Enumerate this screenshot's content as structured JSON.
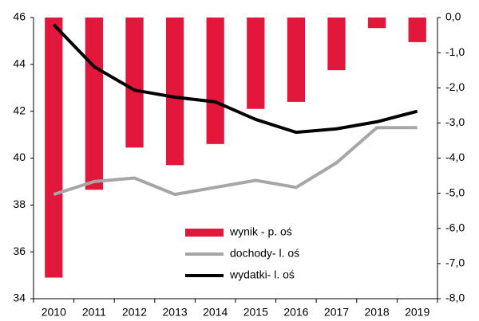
{
  "chart_data": {
    "type": "bar_line",
    "categories": [
      "2010",
      "2011",
      "2012",
      "2013",
      "2014",
      "2015",
      "2016",
      "2017",
      "2018",
      "2019"
    ],
    "series": [
      {
        "name": "wynik - p. oś",
        "type": "bar",
        "axis": "y2",
        "color": "#e3173b",
        "values": [
          -7.4,
          -4.9,
          -3.7,
          -4.2,
          -3.6,
          -2.6,
          -2.4,
          -1.5,
          -0.3,
          -0.7
        ]
      },
      {
        "name": "dochody- l. oś",
        "type": "line",
        "color": "#a6a6a6",
        "values": [
          38.45,
          39.0,
          39.15,
          38.45,
          38.75,
          39.05,
          38.75,
          39.8,
          41.3,
          41.3
        ]
      },
      {
        "name": "wydatki- l. oś",
        "type": "line",
        "color": "#000000",
        "values": [
          45.7,
          43.9,
          42.9,
          42.6,
          42.4,
          41.65,
          41.1,
          41.25,
          41.55,
          42.0
        ]
      }
    ],
    "ylim": [
      34,
      46
    ],
    "yticks": [
      34,
      36,
      38,
      40,
      42,
      44,
      46
    ],
    "y2lim": [
      -8,
      0
    ],
    "y2ticks": [
      {
        "value": 0,
        "label": "0,0"
      },
      {
        "value": -1,
        "label": "-1,0"
      },
      {
        "value": -2,
        "label": "-2,0"
      },
      {
        "value": -3,
        "label": "-3,0"
      },
      {
        "value": -4,
        "label": "-4,0"
      },
      {
        "value": -5,
        "label": "-5,0"
      },
      {
        "value": -6,
        "label": "-6,0"
      },
      {
        "value": -7,
        "label": "-7,0"
      },
      {
        "value": -8,
        "label": "-8,0"
      }
    ],
    "grid": false
  }
}
